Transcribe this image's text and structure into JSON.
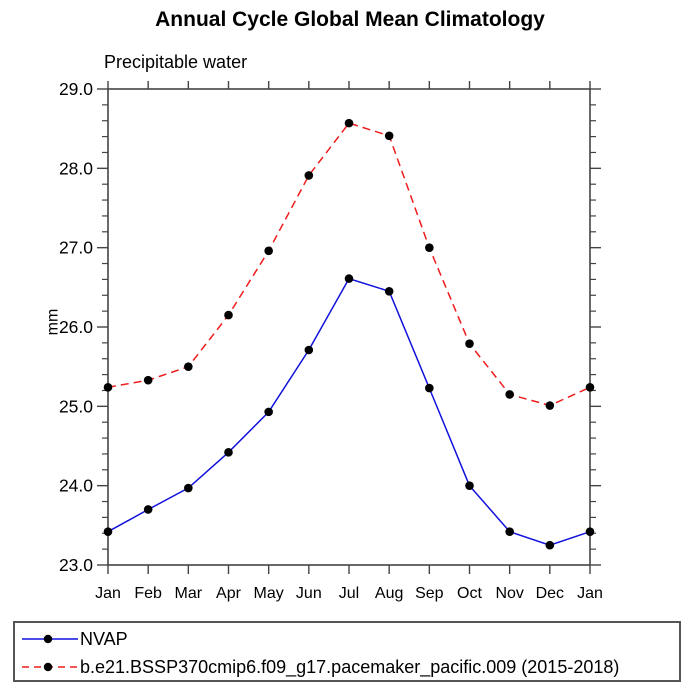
{
  "chart_data": {
    "type": "line",
    "title": "Annual Cycle Global Mean Climatology",
    "subtitle": "Precipitable water",
    "ylabel": "mm",
    "xlabel": "",
    "categories": [
      "Jan",
      "Feb",
      "Mar",
      "Apr",
      "May",
      "Jun",
      "Jul",
      "Aug",
      "Sep",
      "Oct",
      "Nov",
      "Dec",
      "Jan"
    ],
    "series": [
      {
        "name": "NVAP",
        "color": "#1111dd",
        "line_style": "solid",
        "marker": "filled-circle",
        "marker_color": "#000000",
        "values": [
          23.42,
          23.7,
          23.97,
          24.42,
          24.93,
          25.71,
          26.61,
          26.45,
          25.23,
          24.0,
          23.42,
          23.25,
          23.42
        ]
      },
      {
        "name": "b.e21.BSSP370cmip6.f09_g17.pacemaker_pacific.009 (2015-2018)",
        "color": "#ee1c1c",
        "line_style": "dashed",
        "marker": "filled-circle",
        "marker_color": "#000000",
        "values": [
          25.24,
          25.33,
          25.5,
          26.15,
          26.96,
          27.91,
          28.57,
          28.41,
          27.0,
          25.79,
          25.15,
          25.01,
          25.24
        ]
      }
    ],
    "ylim": [
      23.0,
      29.0
    ],
    "yticks": [
      29.0,
      28.0,
      27.0,
      26.0,
      25.0,
      24.0,
      23.0
    ],
    "ytick_labels": [
      "29.0",
      "28.0",
      "27.0",
      "26.0",
      "25.0",
      "24.0",
      "23.0"
    ],
    "y_minor_tick_interval": 0.2,
    "grid": false,
    "axis_color": "#444444",
    "legend_position": "bottom-outside"
  }
}
